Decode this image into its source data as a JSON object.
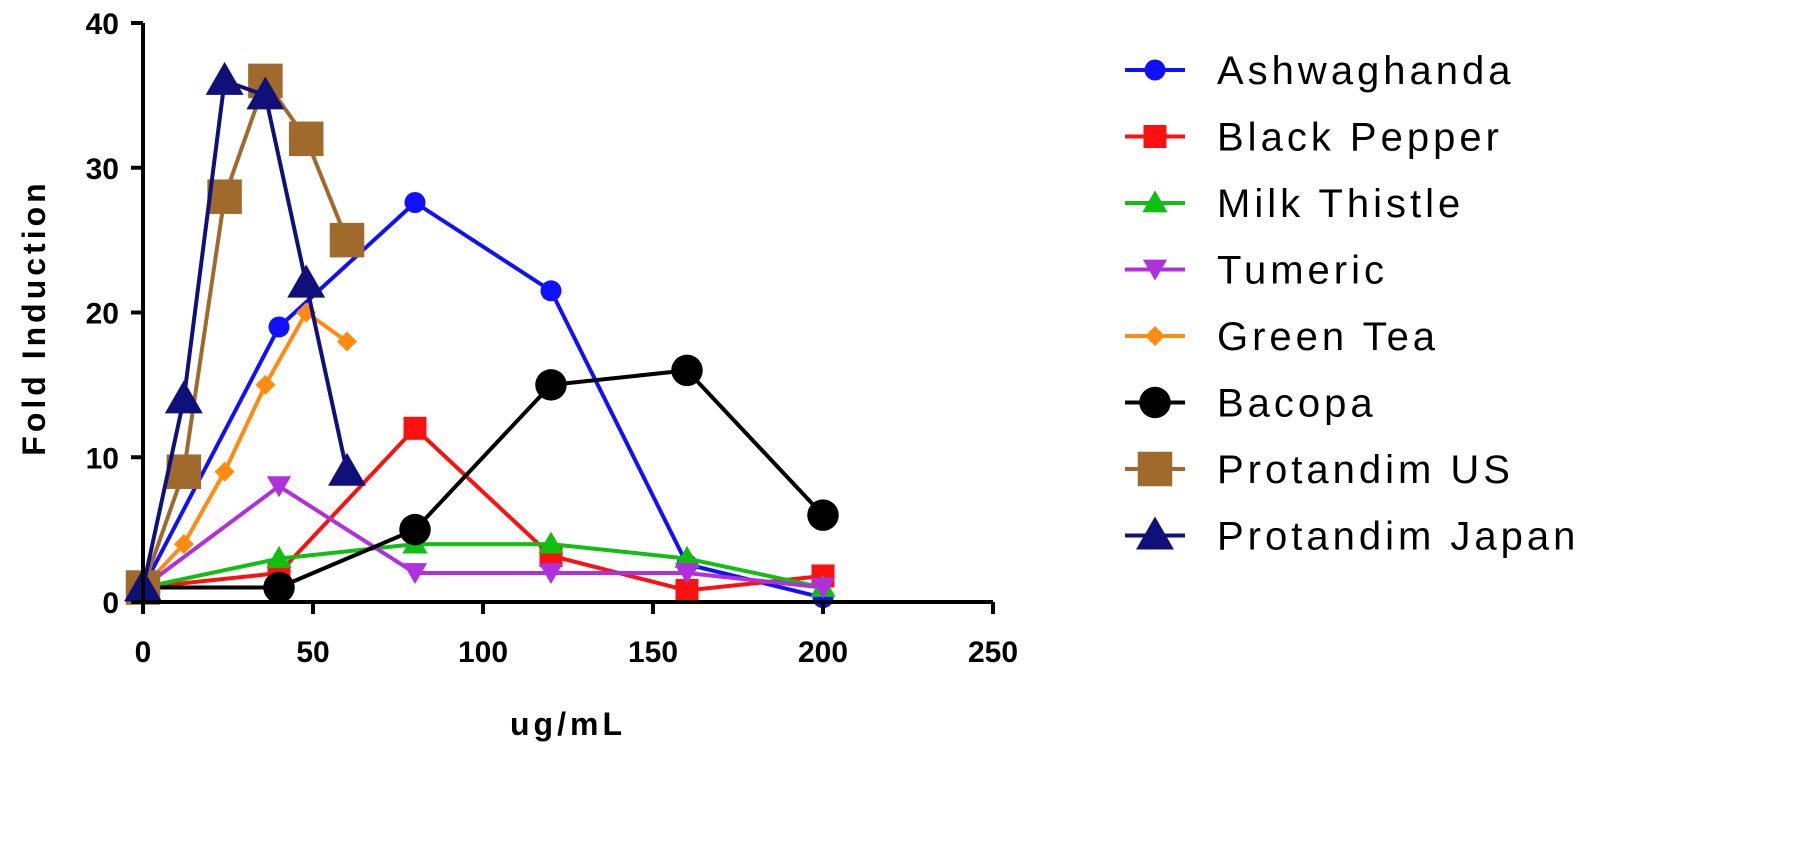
{
  "chart_data": {
    "type": "line",
    "title": "",
    "xlabel": "ug/mL",
    "ylabel": "Fold Induction",
    "xlim": [
      0,
      250
    ],
    "ylim": [
      0,
      40
    ],
    "xticks": [
      0,
      50,
      100,
      150,
      200,
      250
    ],
    "yticks": [
      0,
      10,
      20,
      30,
      40
    ],
    "grid": false,
    "legend_position": "right",
    "series": [
      {
        "name": "Ashwaghanda",
        "color": "#1010ff",
        "marker": "circle",
        "points": [
          [
            0,
            1
          ],
          [
            40,
            19
          ],
          [
            80,
            27.6
          ],
          [
            120,
            21.5
          ],
          [
            160,
            2.6
          ],
          [
            200,
            0.3
          ]
        ]
      },
      {
        "name": "Black Pepper",
        "color": "#ff1010",
        "marker": "square",
        "points": [
          [
            0,
            1
          ],
          [
            40,
            2
          ],
          [
            80,
            12
          ],
          [
            120,
            3.2
          ],
          [
            160,
            0.8
          ],
          [
            200,
            1.8
          ]
        ]
      },
      {
        "name": "Milk Thistle",
        "color": "#10c010",
        "marker": "triangle-up",
        "points": [
          [
            0,
            1
          ],
          [
            40,
            3
          ],
          [
            80,
            4
          ],
          [
            120,
            4
          ],
          [
            160,
            3
          ],
          [
            200,
            1
          ]
        ]
      },
      {
        "name": "Tumeric",
        "color": "#b030e0",
        "marker": "triangle-down",
        "points": [
          [
            0,
            1
          ],
          [
            40,
            8
          ],
          [
            80,
            2
          ],
          [
            120,
            2
          ],
          [
            160,
            2
          ],
          [
            200,
            1
          ]
        ]
      },
      {
        "name": "Green Tea",
        "color": "#ff8c10",
        "marker": "diamond",
        "points": [
          [
            0,
            1
          ],
          [
            12,
            4
          ],
          [
            24,
            9
          ],
          [
            36,
            15
          ],
          [
            48,
            20
          ],
          [
            60,
            18
          ]
        ]
      },
      {
        "name": "Bacopa",
        "color": "#000000",
        "marker": "circle-large",
        "points": [
          [
            0,
            1
          ],
          [
            40,
            1
          ],
          [
            80,
            5
          ],
          [
            120,
            15
          ],
          [
            160,
            16
          ],
          [
            200,
            6
          ]
        ]
      },
      {
        "name": "Protandim US",
        "color": "#a06a2c",
        "marker": "square-large",
        "points": [
          [
            0,
            1
          ],
          [
            12,
            9
          ],
          [
            24,
            28
          ],
          [
            36,
            36
          ],
          [
            48,
            32
          ],
          [
            60,
            25
          ]
        ]
      },
      {
        "name": "Protandim Japan",
        "color": "#10107a",
        "marker": "triangle-up-large",
        "points": [
          [
            0,
            1
          ],
          [
            12,
            14
          ],
          [
            24,
            36
          ],
          [
            36,
            35
          ],
          [
            48,
            22
          ],
          [
            60,
            9
          ]
        ]
      }
    ]
  }
}
